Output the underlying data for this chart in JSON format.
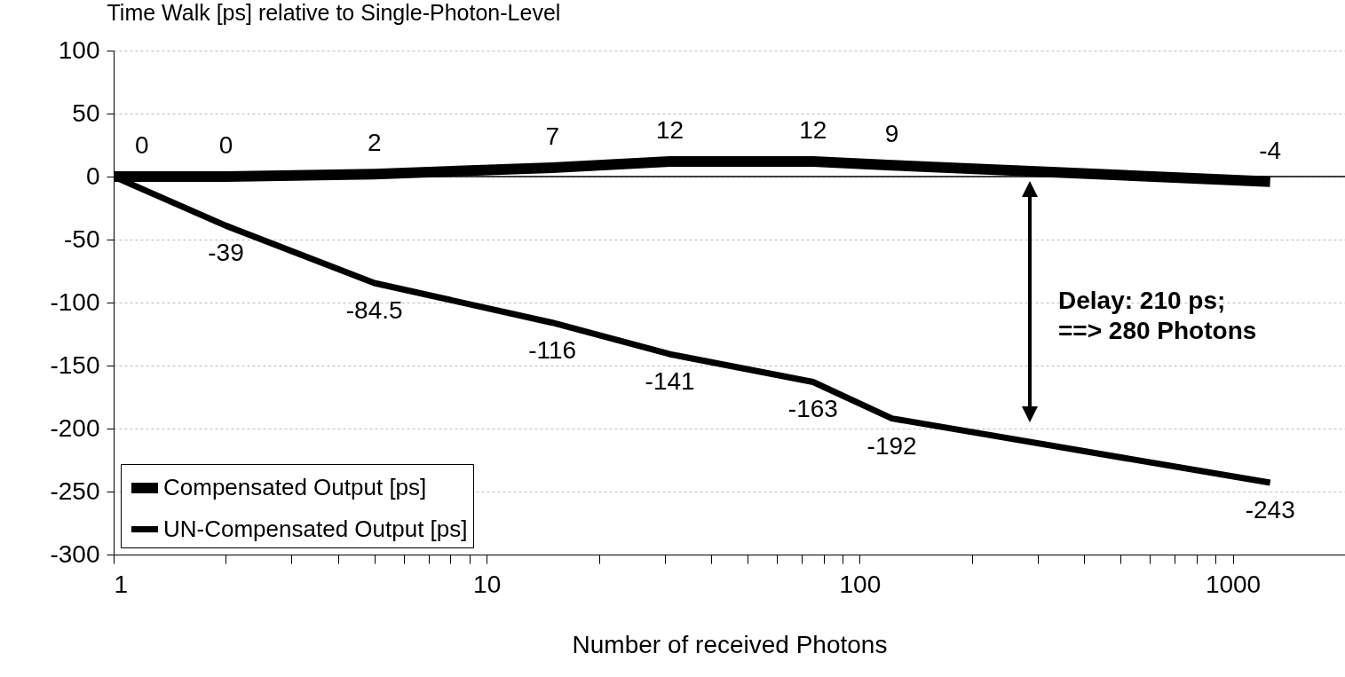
{
  "chart_data": {
    "type": "line",
    "ylabel": "Time Walk [ps] relative to Single-Photon-Level",
    "xlabel": "Number of received Photons",
    "log": "x",
    "x": [
      1,
      2,
      5,
      15,
      31,
      75,
      122,
      1260
    ],
    "series": [
      {
        "name": "Compensated Output [ps]",
        "color": "#000000",
        "values": [
          0,
          0,
          2,
          7,
          12,
          12,
          9,
          -4
        ],
        "value_labels": [
          "0",
          "0",
          "2",
          "7",
          "12",
          "12",
          "9",
          "-4"
        ]
      },
      {
        "name": "UN-Compensated Output [ps]",
        "color": "#000000",
        "values": [
          0,
          -39,
          -84.5,
          -116,
          -141,
          -163,
          -192,
          -243
        ],
        "value_labels": [
          null,
          "-39",
          "-84.5",
          "-116",
          "-141",
          "-163",
          "-192",
          "-243"
        ]
      }
    ],
    "xlim": [
      1,
      2000
    ],
    "xticks": [
      1,
      {
        "value": 2,
        "label": null
      },
      {
        "value": 3,
        "label": null
      },
      {
        "value": 4,
        "label": null
      },
      {
        "value": 5,
        "label": null
      },
      {
        "value": 6,
        "label": null
      },
      {
        "value": 7,
        "label": null
      },
      {
        "value": 8,
        "label": null
      },
      {
        "value": 9,
        "label": null
      },
      10,
      {
        "value": 20,
        "label": null
      },
      {
        "value": 30,
        "label": null
      },
      {
        "value": 40,
        "label": null
      },
      {
        "value": 50,
        "label": null
      },
      {
        "value": 60,
        "label": null
      },
      {
        "value": 70,
        "label": null
      },
      {
        "value": 80,
        "label": null
      },
      {
        "value": 90,
        "label": null
      },
      100,
      {
        "value": 200,
        "label": null
      },
      {
        "value": 300,
        "label": null
      },
      {
        "value": 400,
        "label": null
      },
      {
        "value": 500,
        "label": null
      },
      {
        "value": 600,
        "label": null
      },
      {
        "value": 700,
        "label": null
      },
      {
        "value": 800,
        "label": null
      },
      {
        "value": 900,
        "label": null
      },
      1000
    ],
    "ylim": [
      -300,
      100
    ],
    "yticks": [
      -300,
      -250,
      -200,
      -150,
      -100,
      -50,
      0,
      50,
      100
    ],
    "grid": "y",
    "legend": "bottom left",
    "line_style": "solid",
    "marker": "none",
    "ref_lines": [
      {
        "axis": "y",
        "value": 0,
        "label": null
      }
    ],
    "annotations": [
      "Delay: 210 ps;\n==> 280 Photons"
    ]
  }
}
